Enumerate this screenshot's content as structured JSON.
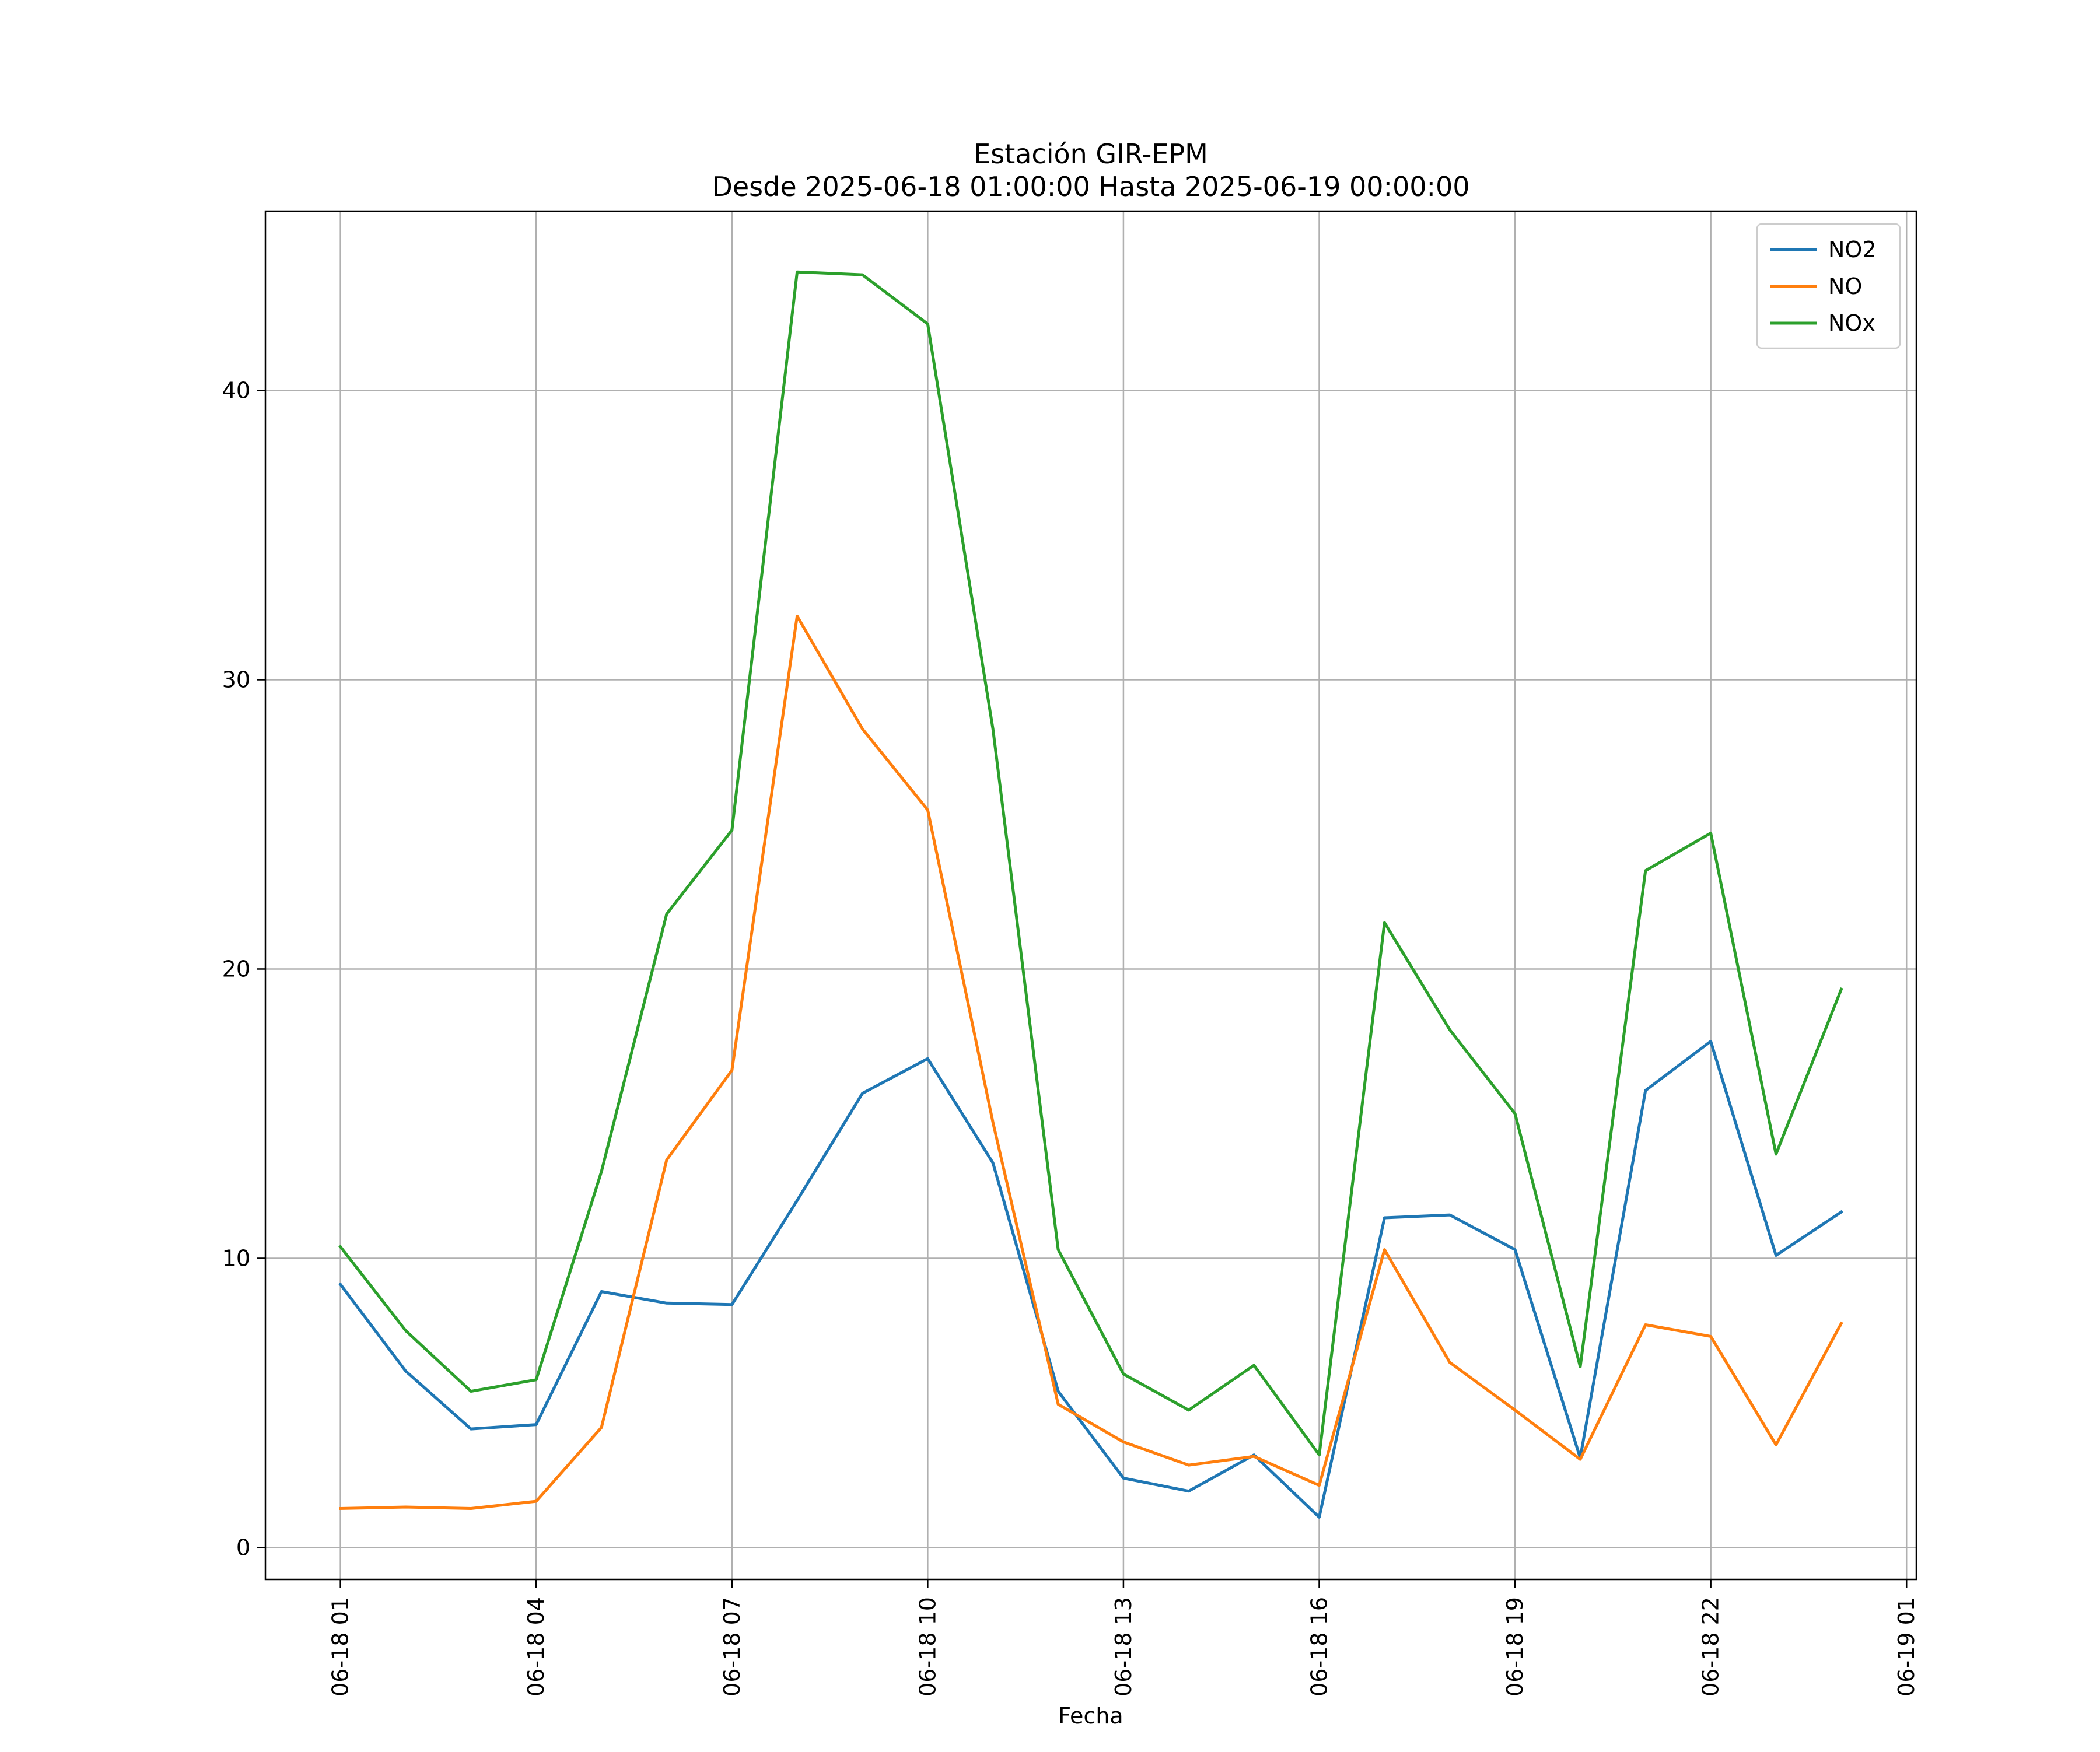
{
  "chart_data": {
    "type": "line",
    "title": "Estación GIR-EPM",
    "subtitle": "Desde 2025-06-18 01:00:00 Hasta 2025-06-19 00:00:00",
    "xlabel": "Fecha",
    "ylabel": "",
    "x": [
      "2025-06-18 01:00",
      "2025-06-18 02:00",
      "2025-06-18 03:00",
      "2025-06-18 04:00",
      "2025-06-18 05:00",
      "2025-06-18 06:00",
      "2025-06-18 07:00",
      "2025-06-18 08:00",
      "2025-06-18 09:00",
      "2025-06-18 10:00",
      "2025-06-18 11:00",
      "2025-06-18 12:00",
      "2025-06-18 13:00",
      "2025-06-18 14:00",
      "2025-06-18 15:00",
      "2025-06-18 16:00",
      "2025-06-18 17:00",
      "2025-06-18 18:00",
      "2025-06-18 19:00",
      "2025-06-18 20:00",
      "2025-06-18 21:00",
      "2025-06-18 22:00",
      "2025-06-18 23:00",
      "2025-06-19 00:00"
    ],
    "x_ticks": [
      {
        "value": "2025-06-18 01:00",
        "label": "06-18 01"
      },
      {
        "value": "2025-06-18 04:00",
        "label": "06-18 04"
      },
      {
        "value": "2025-06-18 07:00",
        "label": "06-18 07"
      },
      {
        "value": "2025-06-18 10:00",
        "label": "06-18 10"
      },
      {
        "value": "2025-06-18 13:00",
        "label": "06-18 13"
      },
      {
        "value": "2025-06-18 16:00",
        "label": "06-18 16"
      },
      {
        "value": "2025-06-18 19:00",
        "label": "06-18 19"
      },
      {
        "value": "2025-06-18 22:00",
        "label": "06-18 22"
      },
      {
        "value": "2025-06-19 01:00",
        "label": "06-19 01"
      }
    ],
    "xlim": [
      "2025-06-17 23:51",
      "2025-06-19 01:09"
    ],
    "ylim": [
      -1.1,
      46.2
    ],
    "y_ticks": [
      0,
      10,
      20,
      30,
      40
    ],
    "grid": true,
    "legend_position": "top-right",
    "series": [
      {
        "name": "NO2",
        "color": "#1f77b4",
        "values": [
          9.1,
          6.1,
          4.1,
          4.25,
          8.85,
          8.45,
          8.4,
          12.0,
          15.7,
          16.9,
          13.3,
          5.4,
          2.4,
          1.95,
          3.2,
          1.05,
          11.4,
          11.5,
          10.3,
          3.1,
          15.8,
          17.5,
          10.1,
          11.6
        ]
      },
      {
        "name": "NO",
        "color": "#ff7f0e",
        "values": [
          1.35,
          1.4,
          1.35,
          1.6,
          4.15,
          13.4,
          16.5,
          32.2,
          28.3,
          25.5,
          14.7,
          4.95,
          3.65,
          2.85,
          3.15,
          2.15,
          10.3,
          6.4,
          4.75,
          3.05,
          7.7,
          7.3,
          3.55,
          7.75
        ]
      },
      {
        "name": "NOx",
        "color": "#2ca02c",
        "values": [
          10.4,
          7.5,
          5.4,
          5.8,
          13.0,
          21.9,
          24.8,
          44.1,
          44.0,
          42.3,
          28.3,
          10.3,
          6.0,
          4.75,
          6.3,
          3.2,
          21.6,
          17.9,
          15.0,
          6.25,
          23.4,
          24.7,
          13.6,
          19.3
        ]
      }
    ]
  }
}
